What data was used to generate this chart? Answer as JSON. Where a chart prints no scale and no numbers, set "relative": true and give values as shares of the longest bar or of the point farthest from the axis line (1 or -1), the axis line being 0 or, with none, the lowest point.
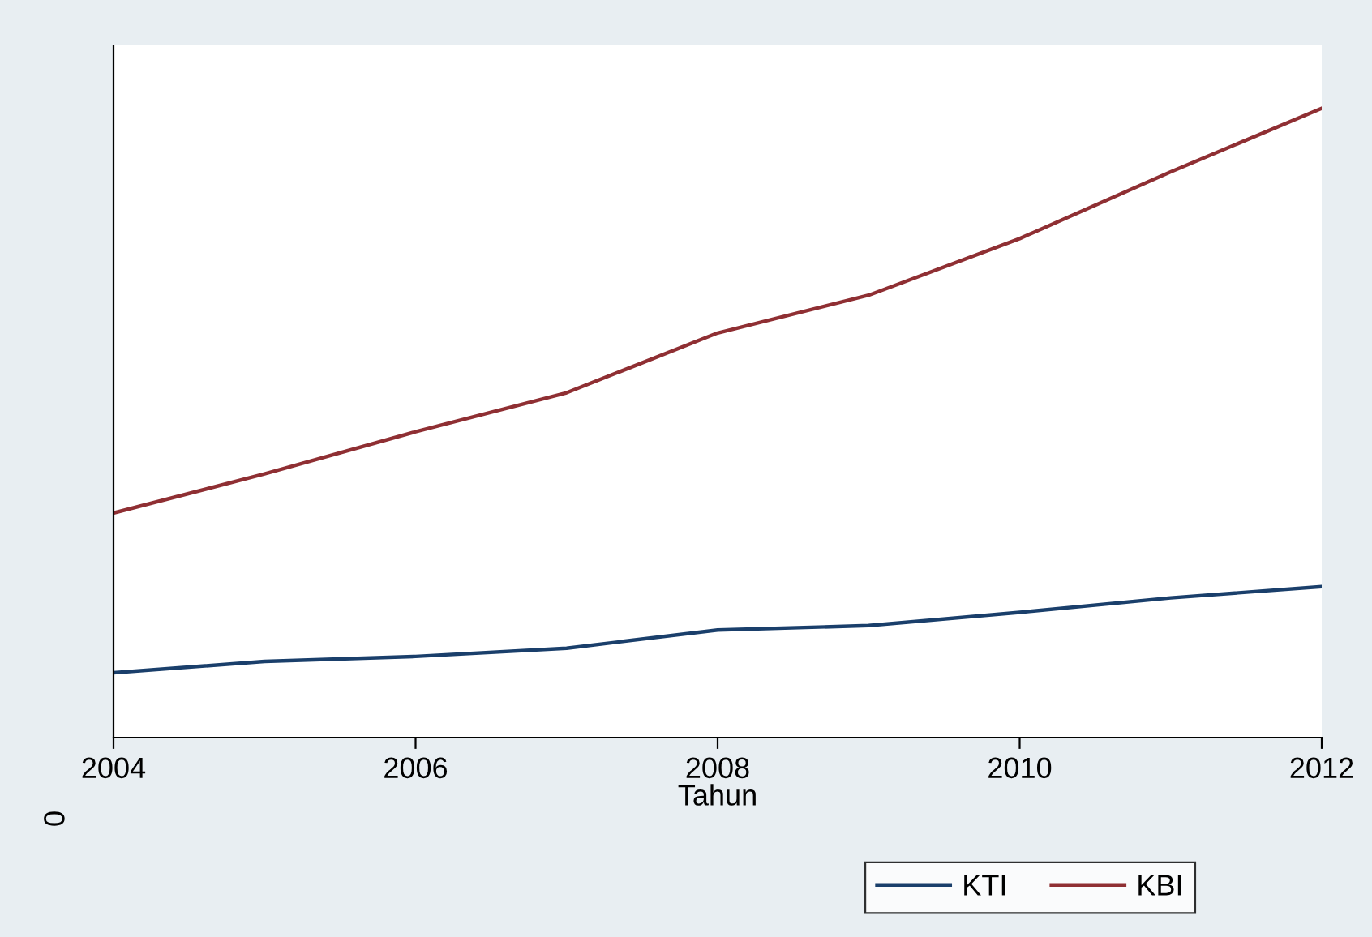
{
  "chart_data": {
    "type": "line",
    "relative": true,
    "xlabel": "Tahun",
    "x": [
      2004,
      2005,
      2006,
      2007,
      2008,
      2009,
      2010,
      2011,
      2012
    ],
    "xlim": [
      2004,
      2012
    ],
    "xticks": [
      2004,
      2006,
      2008,
      2010,
      2012
    ],
    "series": [
      {
        "name": "KTI",
        "color": "#1a3f6b",
        "values": [
          0.103,
          0.121,
          0.129,
          0.142,
          0.171,
          0.178,
          0.199,
          0.222,
          0.24
        ]
      },
      {
        "name": "KBI",
        "color": "#8f2f33",
        "values": [
          0.357,
          0.419,
          0.486,
          0.548,
          0.643,
          0.703,
          0.793,
          0.899,
          1.0
        ]
      }
    ],
    "annotations": [
      "0"
    ],
    "legend": "bottom",
    "tick_labels": "x",
    "marker": "none",
    "line_style": "solid"
  }
}
